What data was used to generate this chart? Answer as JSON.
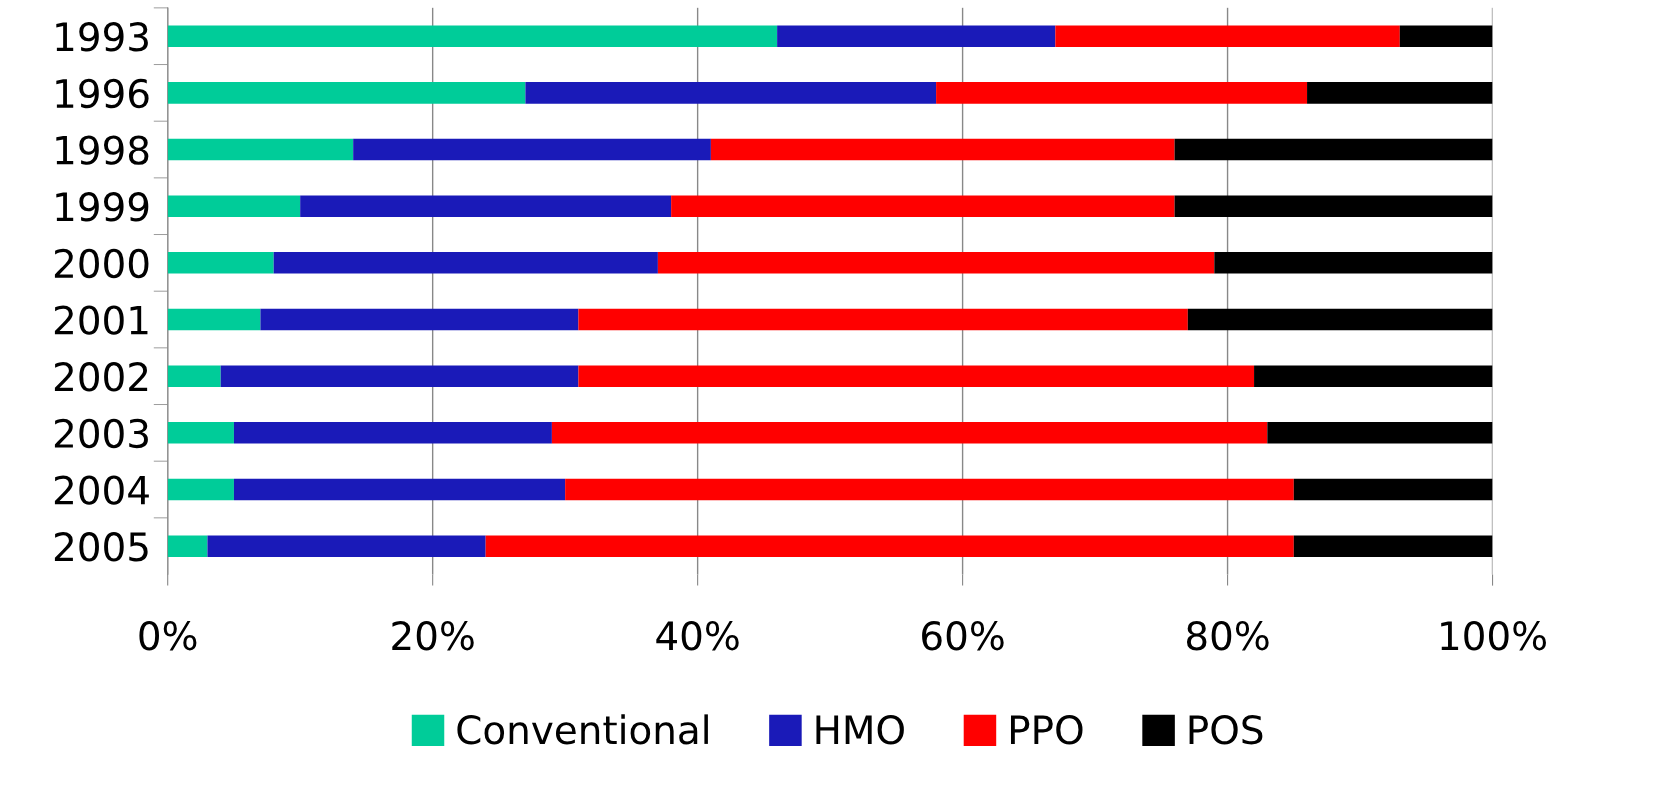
{
  "chart_data": {
    "type": "bar",
    "orientation": "horizontal",
    "stacked": true,
    "categories": [
      "1993",
      "1996",
      "1998",
      "1999",
      "2000",
      "2001",
      "2002",
      "2003",
      "2004",
      "2005"
    ],
    "series": [
      {
        "name": "Conventional",
        "color": "#00cc99",
        "values": [
          46,
          27,
          14,
          10,
          8,
          7,
          4,
          5,
          5,
          3
        ]
      },
      {
        "name": "HMO",
        "color": "#1a1ab8",
        "values": [
          21,
          31,
          27,
          28,
          29,
          24,
          27,
          24,
          25,
          21
        ]
      },
      {
        "name": "PPO",
        "color": "#ff0000",
        "values": [
          26,
          28,
          35,
          38,
          42,
          46,
          51,
          54,
          55,
          61
        ]
      },
      {
        "name": "POS",
        "color": "#000000",
        "values": [
          7,
          14,
          24,
          24,
          21,
          23,
          18,
          17,
          15,
          15
        ]
      }
    ],
    "xlim": [
      0,
      100
    ],
    "xticks": [
      {
        "value": 0,
        "label": "0%"
      },
      {
        "value": 20,
        "label": "20%"
      },
      {
        "value": 40,
        "label": "40%"
      },
      {
        "value": 60,
        "label": "60%"
      },
      {
        "value": 80,
        "label": "80%"
      },
      {
        "value": 100,
        "label": "100%"
      }
    ],
    "grid": "x",
    "legend": "bottom"
  }
}
